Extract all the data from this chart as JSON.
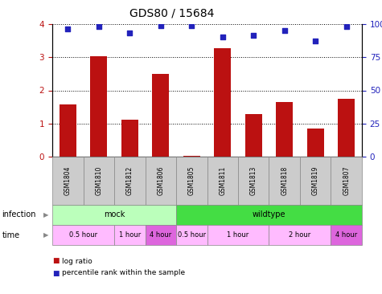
{
  "title": "GDS80 / 15684",
  "samples": [
    "GSM1804",
    "GSM1810",
    "GSM1812",
    "GSM1806",
    "GSM1805",
    "GSM1811",
    "GSM1813",
    "GSM1818",
    "GSM1819",
    "GSM1807"
  ],
  "log_ratio": [
    1.57,
    3.02,
    1.12,
    2.5,
    0.03,
    3.28,
    1.28,
    1.65,
    0.85,
    1.75
  ],
  "percentile": [
    96.5,
    98.0,
    93.5,
    99.0,
    99.0,
    90.5,
    91.5,
    95.0,
    87.5,
    98.0
  ],
  "infection_groups": [
    {
      "label": "mock",
      "start": 0,
      "end": 4,
      "color": "#bbffbb"
    },
    {
      "label": "wildtype",
      "start": 4,
      "end": 10,
      "color": "#44dd44"
    }
  ],
  "time_groups": [
    {
      "label": "0.5 hour",
      "start": 0,
      "end": 2,
      "color": "#ffbbff"
    },
    {
      "label": "1 hour",
      "start": 2,
      "end": 3,
      "color": "#ffbbff"
    },
    {
      "label": "4 hour",
      "start": 3,
      "end": 4,
      "color": "#dd66dd"
    },
    {
      "label": "0.5 hour",
      "start": 4,
      "end": 5,
      "color": "#ffbbff"
    },
    {
      "label": "1 hour",
      "start": 5,
      "end": 7,
      "color": "#ffbbff"
    },
    {
      "label": "2 hour",
      "start": 7,
      "end": 9,
      "color": "#ffbbff"
    },
    {
      "label": "4 hour",
      "start": 9,
      "end": 10,
      "color": "#dd66dd"
    }
  ],
  "bar_color": "#bb1111",
  "dot_color": "#2222bb",
  "left_ylim": [
    0,
    4
  ],
  "right_ylim": [
    0,
    100
  ],
  "left_yticks": [
    0,
    1,
    2,
    3,
    4
  ],
  "right_yticks": [
    0,
    25,
    50,
    75,
    100
  ],
  "right_yticklabels": [
    "0",
    "25",
    "50",
    "75",
    "100%"
  ],
  "xlabel_infection": "infection",
  "xlabel_time": "time",
  "legend_items": [
    "log ratio",
    "percentile rank within the sample"
  ],
  "legend_colors": [
    "#bb1111",
    "#2222bb"
  ],
  "background_color": "#ffffff",
  "sample_bg_color": "#cccccc"
}
